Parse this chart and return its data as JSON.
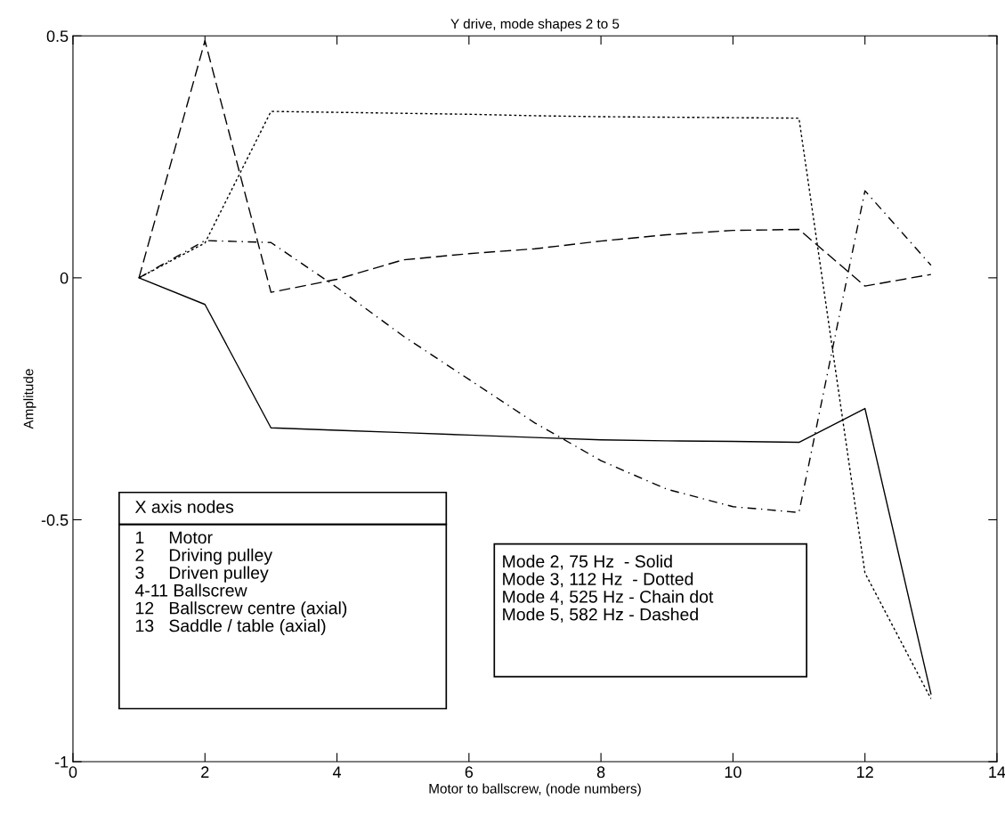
{
  "chart_data": {
    "type": "line",
    "title": "Y drive, mode shapes 2 to 5",
    "xlabel": "Motor to ballscrew, (node numbers)",
    "ylabel": "Amplitude",
    "x": [
      1,
      2,
      3,
      4,
      5,
      6,
      7,
      8,
      9,
      10,
      11,
      12,
      13
    ],
    "series": [
      {
        "color": "#000000",
        "line_style": "solid",
        "values": [
          0,
          -0.055,
          -0.31,
          -0.315,
          -0.32,
          -0.325,
          -0.33,
          -0.335,
          -0.337,
          -0.338,
          -0.34,
          -0.27,
          -0.86
        ]
      },
      {
        "color": "#000000",
        "line_style": "dotted",
        "values": [
          0,
          0.072,
          0.344,
          0.342,
          0.34,
          0.338,
          0.335,
          0.333,
          0.332,
          0.331,
          0.33,
          -0.61,
          -0.87
        ]
      },
      {
        "color": "#000000",
        "line_style": "dashdot",
        "values": [
          0,
          0.077,
          0.073,
          -0.02,
          -0.12,
          -0.21,
          -0.3,
          -0.378,
          -0.437,
          -0.473,
          -0.485,
          0.18,
          0.026
        ]
      },
      {
        "color": "#000000",
        "line_style": "dashed",
        "values": [
          0,
          0.49,
          -0.03,
          -0.003,
          0.037,
          0.05,
          0.06,
          0.076,
          0.089,
          0.098,
          0.1,
          -0.017,
          0.007
        ]
      }
    ],
    "xlim": [
      0,
      14
    ],
    "xticks": [
      0,
      2,
      4,
      6,
      8,
      10,
      12,
      14
    ],
    "ylim": [
      -1,
      0.5
    ],
    "yticks": [
      -1,
      -0.5,
      0,
      0.5
    ],
    "grid": false,
    "legend": false,
    "marker": "none",
    "annotations": [
      "X axis nodes",
      "1     Motor\n2     Driving pulley\n3     Driven pulley\n4-11 Ballscrew\n12   Ballscrew centre (axial)\n13   Saddle / table (axial)",
      "Mode 2, 75 Hz  - Solid\nMode 3, 112 Hz  - Dotted\nMode 4, 525 Hz - Chain dot\nMode 5, 582 Hz - Dashed"
    ]
  }
}
